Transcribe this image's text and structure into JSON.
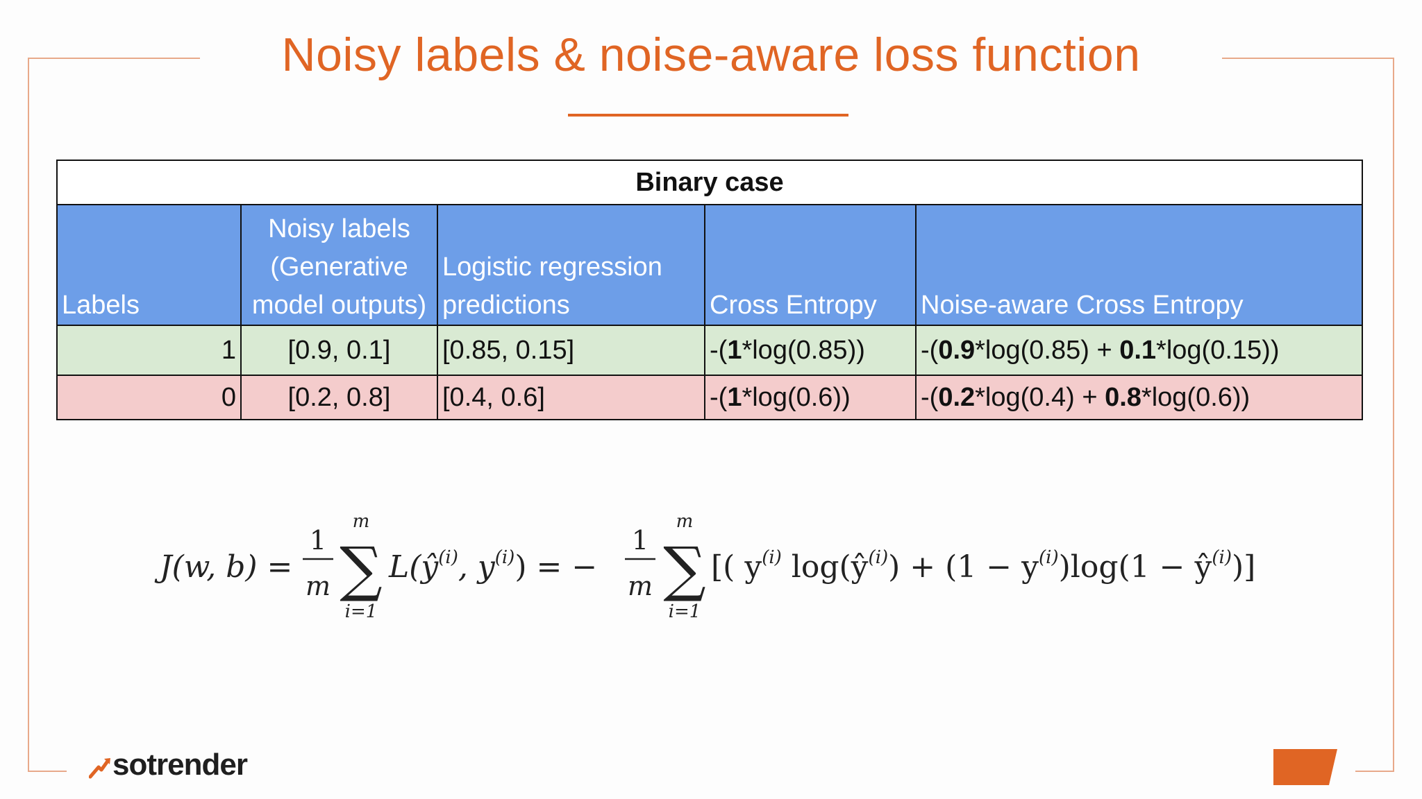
{
  "title": "Noisy labels & noise-aware loss function",
  "colors": {
    "accent": "#e06524",
    "header": "#6d9ee8",
    "row_positive": "#d9ead3",
    "row_negative": "#f4cccc"
  },
  "table": {
    "caption": "Binary case",
    "headers": [
      [
        "Labels"
      ],
      [
        "Noisy labels",
        "(Generative",
        "model outputs)"
      ],
      [
        "Logistic regression",
        "predictions"
      ],
      [
        "Cross Entropy"
      ],
      [
        "Noise-aware Cross Entropy"
      ]
    ],
    "rows": [
      {
        "label": "1",
        "noisy": "[0.9, 0.1]",
        "prediction": "[0.85, 0.15]",
        "ce": {
          "pre": "-(",
          "w": "1",
          "post": "*log(0.85))"
        },
        "nace": {
          "a": "-(",
          "w1": "0.9",
          "b": "*log(0.85) + ",
          "w2": "0.1",
          "c": "*log(0.15))"
        }
      },
      {
        "label": "0",
        "noisy": "[0.2, 0.8]",
        "prediction": "[0.4, 0.6]",
        "ce": {
          "pre": "-(",
          "w": "1",
          "post": "*log(0.6))"
        },
        "nace": {
          "a": "-(",
          "w1": "0.2",
          "b": "*log(0.4) + ",
          "w2": "0.8",
          "c": "*log(0.6))"
        }
      }
    ]
  },
  "formula": {
    "lhs": "J(w, b) =",
    "one": "1",
    "m": "m",
    "sum_top": "m",
    "sum_bottom": "i=1",
    "sigma": "∑",
    "loss": "L(ŷ",
    "sup_i": "(i)",
    "comma_y": ", y",
    "close_eq_minus": ") = −",
    "bracket_term": "[( y",
    "log_yhat": " log(ŷ",
    "plus_one_minus": ") + (1 − y",
    "log_one_minus": ")log(1 − ŷ",
    "end": ")]"
  },
  "brand": {
    "name": "sotrender"
  }
}
